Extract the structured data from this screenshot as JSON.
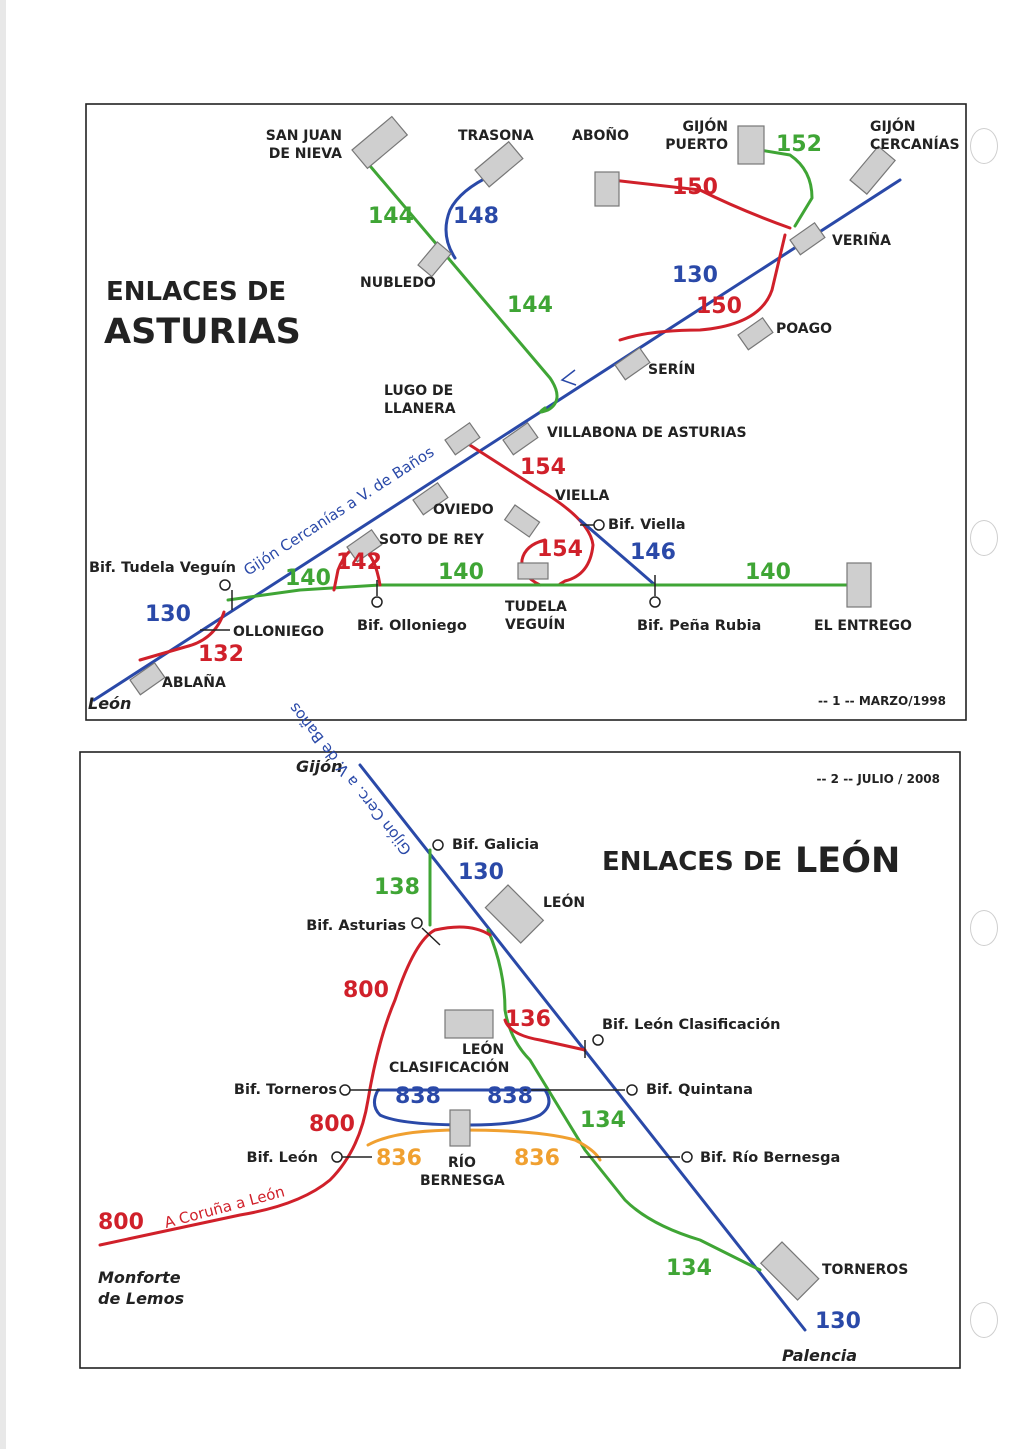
{
  "colors": {
    "blue": "#2a49a8",
    "green": "#3fa535",
    "red": "#d0202a",
    "orange": "#f0a030",
    "frame": "#222222",
    "station": "#cfcfcf"
  },
  "asturias": {
    "title_line1": "ENLACES DE",
    "title_line2": "ASTURIAS",
    "footer": "-- 1 -- MARZO/1998",
    "end_label": "León",
    "route_label": "Gijón Cercanías a V. de Baños",
    "stations": {
      "san_juan_1": "SAN JUAN",
      "san_juan_2": "DE NIEVA",
      "trasona": "TRASONA",
      "abono": "ABOÑO",
      "gijon_puerto_1": "GIJÓN",
      "gijon_puerto_2": "PUERTO",
      "gijon_cerc_1": "GIJÓN",
      "gijon_cerc_2": "CERCANÍAS",
      "verina": "VERIÑA",
      "nubledo": "NUBLEDO",
      "poago": "POAGO",
      "serin": "SERÍN",
      "lugo_1": "LUGO DE",
      "lugo_2": "LLANERA",
      "villabona": "VILLABONA DE ASTURIAS",
      "oviedo": "OVIEDO",
      "viella": "VIELLA",
      "soto": "SOTO DE REY",
      "tudela_1": "TUDELA",
      "tudela_2": "VEGUÍN",
      "olloniego": "OLLONIEGO",
      "el_entrego": "EL ENTREGO",
      "ablana": "ABLAÑA"
    },
    "junctions": {
      "viella": "Bif. Viella",
      "tudela": "Bif. Tudela Veguín",
      "olloniego": "Bif. Olloniego",
      "pena_rubia": "Bif. Peña Rubia"
    },
    "line_numbers": {
      "l152": "152",
      "l150a": "150",
      "l144a": "144",
      "l148": "148",
      "l130a": "130",
      "l150b": "150",
      "l144b": "144",
      "l154a": "154",
      "l154b": "154",
      "l146": "146",
      "l142": "142",
      "l140a": "140",
      "l140b": "140",
      "l140c": "140",
      "l130b": "130",
      "l132": "132"
    }
  },
  "leon": {
    "title_a": "ENLACES DE",
    "title_b": "LEÓN",
    "header": "-- 2 -- JULIO / 2008",
    "end_top": "Gijón",
    "end_left_1": "Monforte",
    "end_left_2": "de Lemos",
    "end_bottom": "Palencia",
    "route_label": "Gijón Cerc. a V. de Baños",
    "route_800": "A Coruña a León",
    "stations": {
      "leon": "LEÓN",
      "clas_1": "LEÓN",
      "clas_2": "CLASIFICACIÓN",
      "rio_1": "RÍO",
      "rio_2": "BERNESGA",
      "torneros": "TORNEROS"
    },
    "junctions": {
      "galicia": "Bif. Galicia",
      "asturias": "Bif. Asturias",
      "clasificacion": "Bif. León Clasificación",
      "torneros": "Bif. Torneros",
      "quintana": "Bif. Quintana",
      "leon": "Bif. León",
      "rio_bernesga": "Bif. Río Bernesga"
    },
    "line_numbers": {
      "l130a": "130",
      "l138": "138",
      "l800a": "800",
      "l136": "136",
      "l838a": "838",
      "l838b": "838",
      "l800b": "800",
      "l134a": "134",
      "l836a": "836",
      "l836b": "836",
      "l800c": "800",
      "l134b": "134",
      "l130b": "130"
    }
  }
}
